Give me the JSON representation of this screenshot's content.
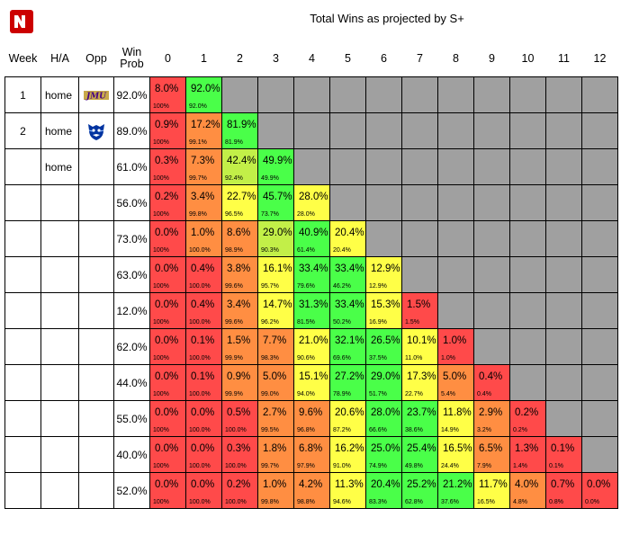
{
  "title": "Total Wins as projected by S+",
  "headers": {
    "week": "Week",
    "ha": "H/A",
    "opp": "Opp",
    "winprob": "Win Prob",
    "wins": [
      "0",
      "1",
      "2",
      "3",
      "4",
      "5",
      "6",
      "7",
      "8",
      "9",
      "10",
      "11",
      "12"
    ]
  },
  "colors": {
    "red": "#ff4a4a",
    "orange": "#ff8e42",
    "yellowgreen": "#c2ef48",
    "yellow": "#ffff47",
    "green": "#4aff49",
    "gray": "#a0a0a0",
    "logo": "#cc0000",
    "jmu": "#450084",
    "gsu": "#0033a0"
  },
  "rows": [
    {
      "week": "1",
      "ha": "home",
      "opp": "jmu-logo-icon",
      "winprob": "92.0%",
      "cells": [
        {
          "p": "8.0%",
          "c": "100%",
          "col": "red"
        },
        {
          "p": "92.0%",
          "c": "92.0%",
          "col": "green"
        }
      ]
    },
    {
      "week": "2",
      "ha": "home",
      "opp": "georgia-state-panther-icon",
      "winprob": "89.0%",
      "cells": [
        {
          "p": "0.9%",
          "c": "100%",
          "col": "red"
        },
        {
          "p": "17.2%",
          "c": "99.1%",
          "col": "orange"
        },
        {
          "p": "81.9%",
          "c": "81.9%",
          "col": "green"
        }
      ]
    },
    {
      "week": "",
      "ha": "home",
      "opp": "",
      "winprob": "61.0%",
      "cells": [
        {
          "p": "0.3%",
          "c": "100%",
          "col": "red"
        },
        {
          "p": "7.3%",
          "c": "99.7%",
          "col": "orange"
        },
        {
          "p": "42.4%",
          "c": "92.4%",
          "col": "yellowgreen"
        },
        {
          "p": "49.9%",
          "c": "49.9%",
          "col": "green"
        }
      ]
    },
    {
      "week": "",
      "ha": "",
      "opp": "",
      "winprob": "56.0%",
      "cells": [
        {
          "p": "0.2%",
          "c": "100%",
          "col": "red"
        },
        {
          "p": "3.4%",
          "c": "99.8%",
          "col": "orange"
        },
        {
          "p": "22.7%",
          "c": "96.5%",
          "col": "yellow"
        },
        {
          "p": "45.7%",
          "c": "73.7%",
          "col": "green"
        },
        {
          "p": "28.0%",
          "c": "28.0%",
          "col": "yellow"
        }
      ]
    },
    {
      "week": "",
      "ha": "",
      "opp": "",
      "winprob": "73.0%",
      "cells": [
        {
          "p": "0.0%",
          "c": "100%",
          "col": "red"
        },
        {
          "p": "1.0%",
          "c": "100.0%",
          "col": "orange"
        },
        {
          "p": "8.6%",
          "c": "98.9%",
          "col": "orange"
        },
        {
          "p": "29.0%",
          "c": "90.3%",
          "col": "yellowgreen"
        },
        {
          "p": "40.9%",
          "c": "61.4%",
          "col": "green"
        },
        {
          "p": "20.4%",
          "c": "20.4%",
          "col": "yellow"
        }
      ]
    },
    {
      "week": "",
      "ha": "",
      "opp": "",
      "winprob": "63.0%",
      "cells": [
        {
          "p": "0.0%",
          "c": "100%",
          "col": "red"
        },
        {
          "p": "0.4%",
          "c": "100.0%",
          "col": "red"
        },
        {
          "p": "3.8%",
          "c": "99.6%",
          "col": "orange"
        },
        {
          "p": "16.1%",
          "c": "95.7%",
          "col": "yellow"
        },
        {
          "p": "33.4%",
          "c": "79.6%",
          "col": "green"
        },
        {
          "p": "33.4%",
          "c": "46.2%",
          "col": "green"
        },
        {
          "p": "12.9%",
          "c": "12.9%",
          "col": "yellow"
        }
      ]
    },
    {
      "week": "",
      "ha": "",
      "opp": "",
      "winprob": "12.0%",
      "cells": [
        {
          "p": "0.0%",
          "c": "100%",
          "col": "red"
        },
        {
          "p": "0.4%",
          "c": "100.0%",
          "col": "red"
        },
        {
          "p": "3.4%",
          "c": "99.6%",
          "col": "orange"
        },
        {
          "p": "14.7%",
          "c": "96.2%",
          "col": "yellow"
        },
        {
          "p": "31.3%",
          "c": "81.5%",
          "col": "green"
        },
        {
          "p": "33.4%",
          "c": "50.2%",
          "col": "green"
        },
        {
          "p": "15.3%",
          "c": "16.9%",
          "col": "yellow"
        },
        {
          "p": "1.5%",
          "c": "1.5%",
          "col": "red"
        }
      ]
    },
    {
      "week": "",
      "ha": "",
      "opp": "",
      "winprob": "62.0%",
      "cells": [
        {
          "p": "0.0%",
          "c": "100%",
          "col": "red"
        },
        {
          "p": "0.1%",
          "c": "100.0%",
          "col": "red"
        },
        {
          "p": "1.5%",
          "c": "99.9%",
          "col": "orange"
        },
        {
          "p": "7.7%",
          "c": "98.3%",
          "col": "orange"
        },
        {
          "p": "21.0%",
          "c": "90.6%",
          "col": "yellow"
        },
        {
          "p": "32.1%",
          "c": "69.6%",
          "col": "green"
        },
        {
          "p": "26.5%",
          "c": "37.5%",
          "col": "green"
        },
        {
          "p": "10.1%",
          "c": "11.0%",
          "col": "yellow"
        },
        {
          "p": "1.0%",
          "c": "1.0%",
          "col": "red"
        }
      ]
    },
    {
      "week": "",
      "ha": "",
      "opp": "",
      "winprob": "44.0%",
      "cells": [
        {
          "p": "0.0%",
          "c": "100%",
          "col": "red"
        },
        {
          "p": "0.1%",
          "c": "100.0%",
          "col": "red"
        },
        {
          "p": "0.9%",
          "c": "99.9%",
          "col": "orange"
        },
        {
          "p": "5.0%",
          "c": "99.0%",
          "col": "orange"
        },
        {
          "p": "15.1%",
          "c": "94.0%",
          "col": "yellow"
        },
        {
          "p": "27.2%",
          "c": "78.9%",
          "col": "green"
        },
        {
          "p": "29.0%",
          "c": "51.7%",
          "col": "green"
        },
        {
          "p": "17.3%",
          "c": "22.7%",
          "col": "yellow"
        },
        {
          "p": "5.0%",
          "c": "5.4%",
          "col": "orange"
        },
        {
          "p": "0.4%",
          "c": "0.4%",
          "col": "red"
        }
      ]
    },
    {
      "week": "",
      "ha": "",
      "opp": "",
      "winprob": "55.0%",
      "cells": [
        {
          "p": "0.0%",
          "c": "100%",
          "col": "red"
        },
        {
          "p": "0.0%",
          "c": "100.0%",
          "col": "red"
        },
        {
          "p": "0.5%",
          "c": "100.0%",
          "col": "red"
        },
        {
          "p": "2.7%",
          "c": "99.5%",
          "col": "orange"
        },
        {
          "p": "9.6%",
          "c": "96.8%",
          "col": "orange"
        },
        {
          "p": "20.6%",
          "c": "87.2%",
          "col": "yellow"
        },
        {
          "p": "28.0%",
          "c": "66.6%",
          "col": "green"
        },
        {
          "p": "23.7%",
          "c": "38.6%",
          "col": "green"
        },
        {
          "p": "11.8%",
          "c": "14.9%",
          "col": "yellow"
        },
        {
          "p": "2.9%",
          "c": "3.2%",
          "col": "orange"
        },
        {
          "p": "0.2%",
          "c": "0.2%",
          "col": "red"
        }
      ]
    },
    {
      "week": "",
      "ha": "",
      "opp": "",
      "winprob": "40.0%",
      "cells": [
        {
          "p": "0.0%",
          "c": "100%",
          "col": "red"
        },
        {
          "p": "0.0%",
          "c": "100.0%",
          "col": "red"
        },
        {
          "p": "0.3%",
          "c": "100.0%",
          "col": "red"
        },
        {
          "p": "1.8%",
          "c": "99.7%",
          "col": "orange"
        },
        {
          "p": "6.8%",
          "c": "97.9%",
          "col": "orange"
        },
        {
          "p": "16.2%",
          "c": "91.0%",
          "col": "yellow"
        },
        {
          "p": "25.0%",
          "c": "74.9%",
          "col": "green"
        },
        {
          "p": "25.4%",
          "c": "49.8%",
          "col": "green"
        },
        {
          "p": "16.5%",
          "c": "24.4%",
          "col": "yellow"
        },
        {
          "p": "6.5%",
          "c": "7.9%",
          "col": "orange"
        },
        {
          "p": "1.3%",
          "c": "1.4%",
          "col": "red"
        },
        {
          "p": "0.1%",
          "c": "0.1%",
          "col": "red"
        }
      ]
    },
    {
      "week": "",
      "ha": "",
      "opp": "",
      "winprob": "52.0%",
      "cells": [
        {
          "p": "0.0%",
          "c": "100%",
          "col": "red"
        },
        {
          "p": "0.0%",
          "c": "100.0%",
          "col": "red"
        },
        {
          "p": "0.2%",
          "c": "100.0%",
          "col": "red"
        },
        {
          "p": "1.0%",
          "c": "99.8%",
          "col": "orange"
        },
        {
          "p": "4.2%",
          "c": "98.8%",
          "col": "orange"
        },
        {
          "p": "11.3%",
          "c": "94.6%",
          "col": "yellow"
        },
        {
          "p": "20.4%",
          "c": "83.3%",
          "col": "green"
        },
        {
          "p": "25.2%",
          "c": "62.8%",
          "col": "green"
        },
        {
          "p": "21.2%",
          "c": "37.6%",
          "col": "green"
        },
        {
          "p": "11.7%",
          "c": "16.5%",
          "col": "yellow"
        },
        {
          "p": "4.0%",
          "c": "4.8%",
          "col": "orange"
        },
        {
          "p": "0.7%",
          "c": "0.8%",
          "col": "red"
        },
        {
          "p": "0.0%",
          "c": "0.0%",
          "col": "red"
        }
      ]
    }
  ]
}
